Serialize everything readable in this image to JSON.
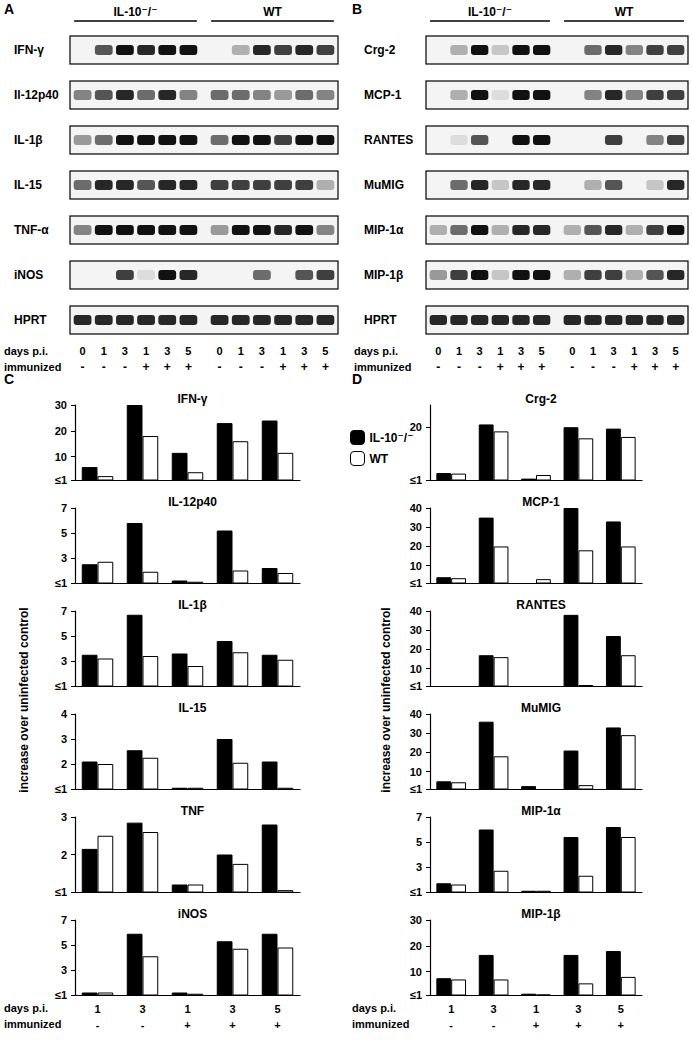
{
  "blots": [
    {
      "panel": "A",
      "groups": [
        "IL-10⁻/⁻",
        "WT"
      ],
      "rows": [
        {
          "label": "IFN-γ",
          "intensity": [
            0,
            0.7,
            1,
            0.9,
            1,
            1,
            0,
            0.3,
            0.9,
            0.8,
            0.9,
            0.8
          ]
        },
        {
          "label": "Il-12p40",
          "intensity": [
            0.5,
            0.7,
            0.9,
            0.6,
            0.9,
            0.5,
            0.6,
            0.6,
            0.5,
            0.4,
            0.6,
            0.5
          ]
        },
        {
          "label": "IL-1β",
          "intensity": [
            0.4,
            0.6,
            1,
            1,
            1,
            1,
            0.6,
            1,
            1,
            0.8,
            1,
            1
          ]
        },
        {
          "label": "IL-15",
          "intensity": [
            0.6,
            0.9,
            0.9,
            0.7,
            0.9,
            0.9,
            0.8,
            0.8,
            0.8,
            0.8,
            0.8,
            0.3
          ]
        },
        {
          "label": "TNF-α",
          "intensity": [
            0.5,
            1,
            1,
            1,
            1,
            1,
            0.4,
            1,
            1,
            0.9,
            1,
            0.5
          ]
        },
        {
          "label": "iNOS",
          "intensity": [
            0,
            0,
            0.8,
            0.1,
            1,
            0.9,
            0,
            0,
            0.6,
            0,
            0.7,
            0.8
          ]
        },
        {
          "label": "HPRT",
          "intensity": [
            0.9,
            0.9,
            0.9,
            0.9,
            0.9,
            0.9,
            0.9,
            0.9,
            0.9,
            0.9,
            0.9,
            0.9
          ]
        }
      ],
      "days_label": "days p.i.",
      "days": [
        "0",
        "1",
        "3",
        "1",
        "3",
        "5",
        "0",
        "1",
        "3",
        "1",
        "3",
        "5"
      ],
      "immunized_label": "immunized",
      "immunized": [
        "-",
        "-",
        "-",
        "+",
        "+",
        "+",
        "-",
        "-",
        "-",
        "+",
        "+",
        "+"
      ]
    },
    {
      "panel": "B",
      "groups": [
        "IL-10⁻/⁻",
        "WT"
      ],
      "rows": [
        {
          "label": "Crg-2",
          "intensity": [
            0,
            0.3,
            1,
            0.2,
            1,
            1,
            0,
            0.6,
            0.9,
            0.5,
            0.8,
            0.8
          ]
        },
        {
          "label": "MCP-1",
          "intensity": [
            0,
            0.3,
            1,
            0.1,
            1,
            1,
            0,
            0.5,
            0.9,
            0.5,
            0.8,
            0.8
          ]
        },
        {
          "label": "RANTES",
          "intensity": [
            0,
            0.1,
            0.7,
            0,
            1,
            1,
            0,
            0,
            0.8,
            0,
            0.5,
            0.8
          ]
        },
        {
          "label": "MuMIG",
          "intensity": [
            0,
            0.6,
            0.9,
            0.2,
            0.9,
            0.9,
            0,
            0.3,
            0.7,
            0,
            0.2,
            0.9
          ]
        },
        {
          "label": "MIP-1α",
          "intensity": [
            0.3,
            0.6,
            1,
            0.3,
            0.9,
            0.9,
            0.3,
            0.7,
            0.9,
            0.3,
            0.8,
            1
          ]
        },
        {
          "label": "MIP-1β",
          "intensity": [
            0.4,
            0.8,
            1,
            0.2,
            1,
            1,
            0.3,
            0.8,
            0.8,
            0.3,
            0.7,
            0.9
          ]
        },
        {
          "label": "HPRT",
          "intensity": [
            0.9,
            0.9,
            0.9,
            0.9,
            0.9,
            0.9,
            0.9,
            0.9,
            0.9,
            0.9,
            0.9,
            0.9
          ]
        }
      ],
      "days_label": "days p.i.",
      "days": [
        "0",
        "1",
        "3",
        "1",
        "3",
        "5",
        "0",
        "1",
        "3",
        "1",
        "3",
        "5"
      ],
      "immunized_label": "immunized",
      "immunized": [
        "-",
        "-",
        "-",
        "+",
        "+",
        "+",
        "-",
        "-",
        "-",
        "+",
        "+",
        "+"
      ]
    }
  ],
  "chart_panels": [
    {
      "panel": "C",
      "y_label": "increase over uninfected control",
      "x_row_labels": [
        "days p.i.",
        "immunized"
      ]
    },
    {
      "panel": "D",
      "y_label": "increase over uninfected control",
      "x_row_labels": [
        "days p.i.",
        "immunized"
      ]
    }
  ],
  "chart_data": [
    {
      "panel": "C",
      "type": "bar",
      "title": "IFN-γ",
      "categories": [
        "1",
        "3",
        "1",
        "3",
        "5"
      ],
      "immunized": [
        "-",
        "-",
        "+",
        "+",
        "+"
      ],
      "series": [
        {
          "name": "IL-10⁻/⁻",
          "color": "#000000",
          "values": [
            6,
            30,
            11.5,
            23,
            24
          ]
        },
        {
          "name": "WT",
          "color": "#ffffff",
          "values": [
            2.5,
            18,
            4,
            16,
            11.5
          ]
        }
      ],
      "ylim": [
        1,
        30
      ],
      "yticks": [
        {
          "value": 1,
          "label": "≤1"
        },
        10,
        20,
        30
      ],
      "grid": false,
      "tick_labels": "y"
    },
    {
      "panel": "C",
      "type": "bar",
      "title": "IL-12p40",
      "categories": [
        "1",
        "3",
        "1",
        "3",
        "5"
      ],
      "immunized": [
        "-",
        "-",
        "+",
        "+",
        "+"
      ],
      "series": [
        {
          "name": "IL-10⁻/⁻",
          "color": "#000000",
          "values": [
            2.5,
            5.8,
            1.2,
            5.2,
            2.2
          ]
        },
        {
          "name": "WT",
          "color": "#ffffff",
          "values": [
            2.7,
            1.9,
            1.1,
            2.0,
            1.8
          ]
        }
      ],
      "ylim": [
        1,
        7
      ],
      "yticks": [
        {
          "value": 1,
          "label": "≤1"
        },
        3,
        5,
        7
      ],
      "grid": false,
      "tick_labels": "y"
    },
    {
      "panel": "C",
      "type": "bar",
      "title": "IL-1β",
      "categories": [
        "1",
        "3",
        "1",
        "3",
        "5"
      ],
      "immunized": [
        "-",
        "-",
        "+",
        "+",
        "+"
      ],
      "series": [
        {
          "name": "IL-10⁻/⁻",
          "color": "#000000",
          "values": [
            3.5,
            6.7,
            3.6,
            4.6,
            3.5
          ]
        },
        {
          "name": "WT",
          "color": "#ffffff",
          "values": [
            3.2,
            3.4,
            2.6,
            3.7,
            3.1
          ]
        }
      ],
      "ylim": [
        1,
        7
      ],
      "yticks": [
        {
          "value": 1,
          "label": "≤1"
        },
        3,
        5,
        7
      ],
      "grid": false,
      "tick_labels": "y"
    },
    {
      "panel": "C",
      "type": "bar",
      "title": "IL-15",
      "categories": [
        "1",
        "3",
        "1",
        "3",
        "5"
      ],
      "immunized": [
        "-",
        "-",
        "+",
        "+",
        "+"
      ],
      "series": [
        {
          "name": "IL-10⁻/⁻",
          "color": "#000000",
          "values": [
            2.1,
            2.55,
            1.05,
            3.0,
            2.1
          ]
        },
        {
          "name": "WT",
          "color": "#ffffff",
          "values": [
            2.0,
            2.25,
            1.05,
            2.05,
            1.05
          ]
        }
      ],
      "ylim": [
        1,
        4
      ],
      "yticks": [
        {
          "value": 1,
          "label": "≤1"
        },
        2,
        3,
        4
      ],
      "grid": false,
      "tick_labels": "y"
    },
    {
      "panel": "C",
      "type": "bar",
      "title": "TNF",
      "categories": [
        "1",
        "3",
        "1",
        "3",
        "5"
      ],
      "immunized": [
        "-",
        "-",
        "+",
        "+",
        "+"
      ],
      "series": [
        {
          "name": "IL-10⁻/⁻",
          "color": "#000000",
          "values": [
            2.15,
            2.85,
            1.2,
            2.0,
            2.8
          ]
        },
        {
          "name": "WT",
          "color": "#ffffff",
          "values": [
            2.5,
            2.6,
            1.2,
            1.75,
            1.05
          ]
        }
      ],
      "ylim": [
        1,
        3
      ],
      "yticks": [
        {
          "value": 1,
          "label": "≤1"
        },
        2,
        3
      ],
      "grid": false,
      "tick_labels": "y"
    },
    {
      "panel": "C",
      "type": "bar",
      "title": "iNOS",
      "categories": [
        "1",
        "3",
        "1",
        "3",
        "5"
      ],
      "immunized": [
        "-",
        "-",
        "+",
        "+",
        "+"
      ],
      "series": [
        {
          "name": "IL-10⁻/⁻",
          "color": "#000000",
          "values": [
            1.2,
            5.9,
            1.2,
            5.3,
            5.9
          ]
        },
        {
          "name": "WT",
          "color": "#ffffff",
          "values": [
            1.2,
            4.1,
            1.1,
            4.7,
            4.8
          ]
        }
      ],
      "ylim": [
        1,
        7
      ],
      "yticks": [
        {
          "value": 1,
          "label": "≤1"
        },
        3,
        5,
        7
      ],
      "grid": false
    },
    {
      "panel": "D",
      "type": "bar",
      "title": "Crg-2",
      "categories": [
        "1",
        "3",
        "1",
        "3",
        "5"
      ],
      "immunized": [
        "-",
        "-",
        "+",
        "+",
        "+"
      ],
      "series": [
        {
          "name": "IL-10⁻/⁻",
          "color": "#000000",
          "values": [
            3.5,
            21,
            1.5,
            20,
            19.5
          ]
        },
        {
          "name": "WT",
          "color": "#ffffff",
          "values": [
            3.3,
            18.5,
            2.8,
            16,
            16.5
          ]
        }
      ],
      "ylim": [
        1,
        28
      ],
      "yticks": [
        {
          "value": 1,
          "label": "≤1"
        },
        20
      ],
      "grid": false,
      "tick_labels": "y",
      "legend": "upper left"
    },
    {
      "panel": "D",
      "type": "bar",
      "title": "MCP-1",
      "categories": [
        "1",
        "3",
        "1",
        "3",
        "5"
      ],
      "immunized": [
        "-",
        "-",
        "+",
        "+",
        "+"
      ],
      "series": [
        {
          "name": "IL-10⁻/⁻",
          "color": "#000000",
          "values": [
            4,
            35,
            1,
            40,
            33
          ]
        },
        {
          "name": "WT",
          "color": "#ffffff",
          "values": [
            3.5,
            20,
            3,
            18,
            20
          ]
        }
      ],
      "ylim": [
        1,
        40
      ],
      "yticks": [
        {
          "value": 1,
          "label": "≤1"
        },
        10,
        20,
        30,
        40
      ],
      "grid": false,
      "tick_labels": "y"
    },
    {
      "panel": "D",
      "type": "bar",
      "title": "RANTES",
      "categories": [
        "1",
        "3",
        "1",
        "3",
        "5"
      ],
      "immunized": [
        "-",
        "-",
        "+",
        "+",
        "+"
      ],
      "series": [
        {
          "name": "IL-10⁻/⁻",
          "color": "#000000",
          "values": [
            1.2,
            17,
            1.2,
            38,
            27
          ]
        },
        {
          "name": "WT",
          "color": "#ffffff",
          "values": [
            1.1,
            16,
            1.1,
            1.5,
            17
          ]
        }
      ],
      "ylim": [
        1,
        40
      ],
      "yticks": [
        {
          "value": 1,
          "label": "≤1"
        },
        10,
        20,
        30,
        40
      ],
      "grid": false,
      "tick_labels": "y"
    },
    {
      "panel": "D",
      "type": "bar",
      "title": "MuMIG",
      "categories": [
        "1",
        "3",
        "1",
        "3",
        "5"
      ],
      "immunized": [
        "-",
        "-",
        "+",
        "+",
        "+"
      ],
      "series": [
        {
          "name": "IL-10⁻/⁻",
          "color": "#000000",
          "values": [
            5,
            36,
            2.5,
            21,
            33
          ]
        },
        {
          "name": "WT",
          "color": "#ffffff",
          "values": [
            4.5,
            18,
            1.2,
            3,
            29
          ]
        }
      ],
      "ylim": [
        1,
        40
      ],
      "yticks": [
        {
          "value": 1,
          "label": "≤1"
        },
        10,
        20,
        30,
        40
      ],
      "grid": false,
      "tick_labels": "y"
    },
    {
      "panel": "D",
      "type": "bar",
      "title": "MIP-1α",
      "categories": [
        "1",
        "3",
        "1",
        "3",
        "5"
      ],
      "immunized": [
        "-",
        "-",
        "+",
        "+",
        "+"
      ],
      "series": [
        {
          "name": "IL-10⁻/⁻",
          "color": "#000000",
          "values": [
            1.7,
            6,
            1.1,
            5.4,
            6.2
          ]
        },
        {
          "name": "WT",
          "color": "#ffffff",
          "values": [
            1.6,
            2.7,
            1.1,
            2.3,
            5.4
          ]
        }
      ],
      "ylim": [
        1,
        7
      ],
      "yticks": [
        {
          "value": 1,
          "label": "≤1"
        },
        3,
        5,
        7
      ],
      "grid": false,
      "tick_labels": "y"
    },
    {
      "panel": "D",
      "type": "bar",
      "title": "MIP-1β",
      "categories": [
        "1",
        "3",
        "1",
        "3",
        "5"
      ],
      "immunized": [
        "-",
        "-",
        "+",
        "+",
        "+"
      ],
      "series": [
        {
          "name": "IL-10⁻/⁻",
          "color": "#000000",
          "values": [
            7.5,
            16.5,
            1.5,
            16.5,
            18
          ]
        },
        {
          "name": "WT",
          "color": "#ffffff",
          "values": [
            7,
            7,
            1.2,
            5.5,
            8
          ]
        }
      ],
      "ylim": [
        1,
        30
      ],
      "yticks": [
        {
          "value": 1,
          "label": "≤1"
        },
        10,
        20,
        30
      ],
      "grid": false
    }
  ]
}
